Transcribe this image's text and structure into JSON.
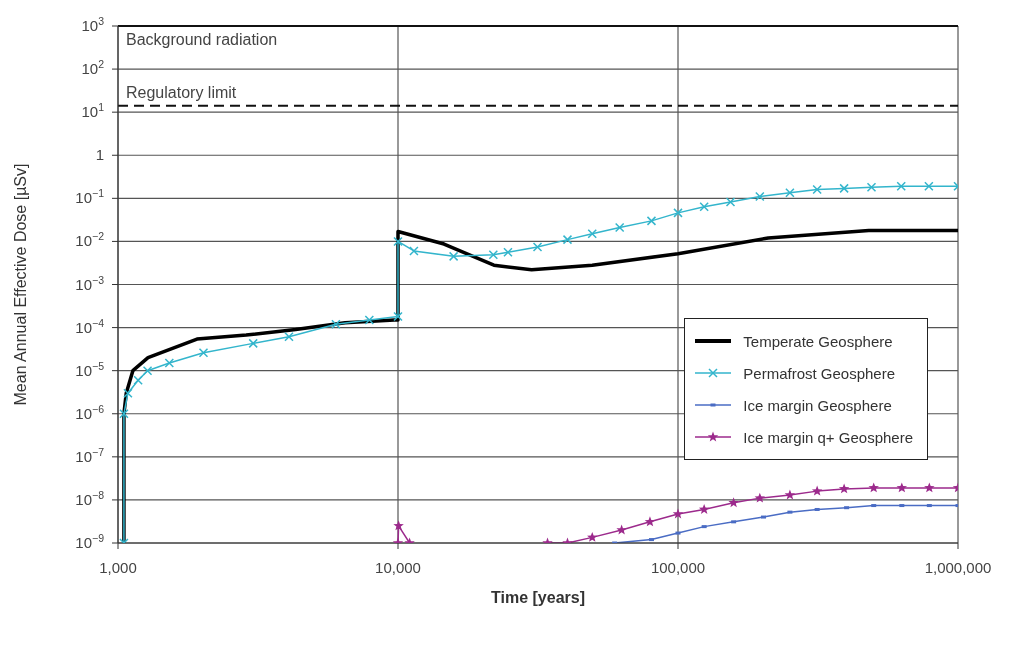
{
  "chart_data": {
    "type": "line",
    "xlabel": "Time [years]",
    "ylabel": "Mean Annual Effective Dose [µSv]",
    "log": "xy",
    "grid": true,
    "legend": "right",
    "xlim": [
      1000,
      1000000
    ],
    "xticks": [
      {
        "value": 1000,
        "label": "1,000"
      },
      {
        "value": 10000,
        "label": "10,000"
      },
      {
        "value": 100000,
        "label": "100,000"
      },
      {
        "value": 1000000,
        "label": "1,000,000"
      }
    ],
    "ylim": [
      1e-09,
      1000
    ],
    "yticks": [
      {
        "value": 1e-09,
        "label": "10$^{−9}$"
      },
      {
        "value": 1e-08,
        "label": "10$^{−8}$"
      },
      {
        "value": 1e-07,
        "label": "10$^{−7}$"
      },
      {
        "value": 1e-06,
        "label": "10$^{−6}$"
      },
      {
        "value": 1e-05,
        "label": "10$^{−5}$"
      },
      {
        "value": 0.0001,
        "label": "10$^{−4}$"
      },
      {
        "value": 0.001,
        "label": "10$^{−3}$"
      },
      {
        "value": 0.01,
        "label": "10$^{−2}$"
      },
      {
        "value": 0.1,
        "label": "10$^{−1}$"
      },
      1,
      {
        "value": 10,
        "label": "10$^{1}$"
      },
      {
        "value": 100,
        "label": "10$^{2}$"
      },
      {
        "value": 1000,
        "label": "10$^{3}$"
      }
    ],
    "ref_lines": [
      {
        "axis": "y",
        "value": 1000,
        "label": "Background radiation",
        "line_style": "solid"
      },
      {
        "axis": "y",
        "value": 14,
        "label": "Regulatory limit",
        "line_style": "dashed"
      }
    ],
    "series": [
      {
        "name": "Temperate Geosphere",
        "color": "#000000",
        "marker": "none",
        "x": [
          1050,
          1050,
          1070,
          1130,
          1280,
          1915,
          2870,
          4310,
          6470,
          9700,
          10000,
          10000,
          14600,
          22000,
          30000,
          49400,
          100000,
          210000,
          480000,
          1000000
        ],
        "values": [
          1e-09,
          1e-06,
          3e-06,
          1e-05,
          2e-05,
          5.4e-05,
          6.7e-05,
          9e-05,
          0.00013,
          0.00015,
          0.00015,
          0.017,
          0.0087,
          0.0028,
          0.0022,
          0.0028,
          0.0052,
          0.012,
          0.018,
          0.018
        ]
      },
      {
        "name": "Permafrost Geosphere",
        "color": "#33b5cc",
        "marker": "cross",
        "x": [
          1050,
          1050,
          1085,
          1180,
          1275,
          1525,
          2020,
          3040,
          4080,
          6000,
          7900,
          10000,
          10000,
          11400,
          15800,
          21900,
          24700,
          31500,
          40300,
          49400,
          61900,
          80400,
          100000,
          124000,
          154000,
          196000,
          251000,
          314000,
          392000,
          491000,
          627000,
          787000,
          1000000
        ],
        "values": [
          1e-09,
          1e-06,
          3e-06,
          6e-06,
          1e-05,
          1.5e-05,
          2.6e-05,
          4.3e-05,
          6.1e-05,
          0.00012,
          0.00015,
          0.00018,
          0.01,
          0.006,
          0.0045,
          0.0049,
          0.0056,
          0.0074,
          0.011,
          0.015,
          0.021,
          0.03,
          0.046,
          0.064,
          0.082,
          0.11,
          0.135,
          0.16,
          0.17,
          0.18,
          0.19,
          0.19,
          0.19
        ]
      },
      {
        "name": "Ice margin Geosphere",
        "color": "#4a6cc4",
        "marker": "square",
        "x": [
          59400,
          80400,
          100000,
          124000,
          158000,
          202000,
          251000,
          314000,
          400000,
          500000,
          630000,
          790000,
          1000000
        ],
        "values": [
          1e-09,
          1.2e-09,
          1.7e-09,
          2.4e-09,
          3.1e-09,
          4e-09,
          5.2e-09,
          6e-09,
          6.6e-09,
          7.4e-09,
          7.4e-09,
          7.4e-09,
          7.4e-09
        ]
      },
      {
        "name": "Ice margin q+ Geosphere",
        "color": "#9c2a8c",
        "marker": "star",
        "x": [
          10000,
          10050,
          11000,
          20000,
          34200,
          40300,
          49400,
          62900,
          79400,
          100000,
          124000,
          158000,
          196000,
          251000,
          314000,
          392000,
          500000,
          630000,
          790000,
          1000000
        ],
        "values": [
          1e-09,
          2.5e-09,
          1e-09,
          null,
          1e-09,
          1e-09,
          1.35e-09,
          2e-09,
          3.1e-09,
          4.7e-09,
          6e-09,
          8.6e-09,
          1.1e-08,
          1.3e-08,
          1.6e-08,
          1.8e-08,
          1.9e-08,
          1.9e-08,
          1.9e-08,
          1.9e-08
        ]
      }
    ]
  }
}
